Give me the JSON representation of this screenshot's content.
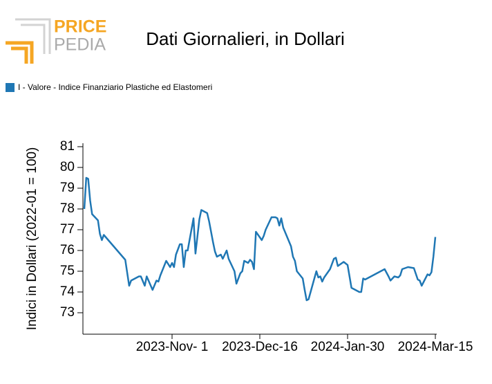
{
  "logo": {
    "top": "PRICE",
    "bottom": "PEDIA"
  },
  "chart_data": {
    "type": "line",
    "title": "Dati Giornalieri, in Dollari",
    "y_label": "Indici in Dollari (2022-01 = 100)",
    "x": [
      "2023-09-17",
      "2023-09-18",
      "2023-09-19",
      "2023-09-20",
      "2023-09-21",
      "2023-09-24",
      "2023-09-25",
      "2023-09-26",
      "2023-09-27",
      "2023-10-08",
      "2023-10-10",
      "2023-10-11",
      "2023-10-15",
      "2023-10-16",
      "2023-10-18",
      "2023-10-19",
      "2023-10-22",
      "2023-10-24",
      "2023-10-25",
      "2023-10-26",
      "2023-10-29",
      "2023-10-31",
      "2023-11-01",
      "2023-11-02",
      "2023-11-03",
      "2023-11-05",
      "2023-11-06",
      "2023-11-07",
      "2023-11-08",
      "2023-11-09",
      "2023-11-12",
      "2023-11-13",
      "2023-11-15",
      "2023-11-16",
      "2023-11-19",
      "2023-11-20",
      "2023-11-22",
      "2023-11-23",
      "2023-11-24",
      "2023-11-26",
      "2023-11-27",
      "2023-11-28",
      "2023-11-29",
      "2023-11-30",
      "2023-12-03",
      "2023-12-04",
      "2023-12-06",
      "2023-12-07",
      "2023-12-08",
      "2023-12-10",
      "2023-12-11",
      "2023-12-12",
      "2023-12-13",
      "2023-12-14",
      "2023-12-17",
      "2023-12-18",
      "2023-12-19",
      "2023-12-22",
      "2023-12-24",
      "2023-12-25",
      "2023-12-26",
      "2023-12-27",
      "2023-12-28",
      "2024-01-01",
      "2024-01-02",
      "2024-01-03",
      "2024-01-04",
      "2024-01-07",
      "2024-01-08",
      "2024-01-09",
      "2024-01-10",
      "2024-01-14",
      "2024-01-15",
      "2024-01-16",
      "2024-01-17",
      "2024-01-18",
      "2024-01-21",
      "2024-01-23",
      "2024-01-24",
      "2024-01-25",
      "2024-01-28",
      "2024-01-30",
      "2024-02-01",
      "2024-02-05",
      "2024-02-06",
      "2024-02-07",
      "2024-02-08",
      "2024-02-18",
      "2024-02-20",
      "2024-02-21",
      "2024-02-23",
      "2024-02-25",
      "2024-02-26",
      "2024-02-27",
      "2024-03-01",
      "2024-03-04",
      "2024-03-06",
      "2024-03-07",
      "2024-03-08",
      "2024-03-11",
      "2024-03-12",
      "2024-03-13",
      "2024-03-14",
      "2024-03-15"
    ],
    "series": [
      {
        "name": "I - Valore - Indice Finanziario Plastiche ed Elastomeri",
        "color": "#1f77b4",
        "values": [
          78.0,
          79.5,
          79.45,
          78.4,
          77.75,
          77.45,
          76.8,
          76.5,
          76.75,
          75.55,
          74.3,
          74.55,
          74.75,
          74.75,
          74.3,
          74.75,
          74.1,
          74.55,
          74.5,
          74.8,
          75.5,
          75.2,
          75.4,
          75.2,
          75.8,
          76.3,
          76.3,
          75.2,
          76.0,
          76.0,
          77.55,
          75.85,
          77.5,
          77.95,
          77.8,
          77.4,
          76.4,
          75.95,
          75.7,
          75.8,
          75.6,
          75.8,
          76.0,
          75.6,
          75.0,
          74.4,
          74.9,
          75.0,
          75.5,
          75.4,
          75.55,
          75.45,
          75.1,
          76.9,
          76.5,
          76.7,
          77.0,
          77.6,
          77.6,
          77.55,
          77.2,
          77.55,
          77.1,
          76.2,
          75.7,
          75.5,
          75.0,
          74.65,
          74.1,
          73.6,
          73.65,
          75.0,
          74.7,
          74.75,
          74.5,
          74.7,
          75.1,
          75.6,
          75.65,
          75.25,
          75.45,
          75.3,
          74.2,
          74.0,
          74.0,
          74.65,
          74.6,
          75.1,
          74.75,
          74.55,
          74.75,
          74.7,
          74.8,
          75.1,
          75.2,
          75.15,
          74.6,
          74.55,
          74.3,
          74.85,
          74.8,
          74.95,
          75.7,
          76.65
        ]
      }
    ],
    "xlim": [
      "2023-09-17",
      "2024-03-15"
    ],
    "xticks": [
      {
        "value": "2023-11-01",
        "label": "2023-Nov- 1"
      },
      {
        "value": "2023-12-16",
        "label": "2023-Dec-16"
      },
      {
        "value": "2024-01-30",
        "label": "2024-Jan-30"
      },
      {
        "value": "2024-03-15",
        "label": "2024-Mar-15"
      }
    ],
    "ylim": [
      72,
      81
    ],
    "yticks": [
      73,
      74,
      75,
      76,
      77,
      78,
      79,
      80,
      81
    ],
    "grid": false,
    "legend": "top-left"
  }
}
